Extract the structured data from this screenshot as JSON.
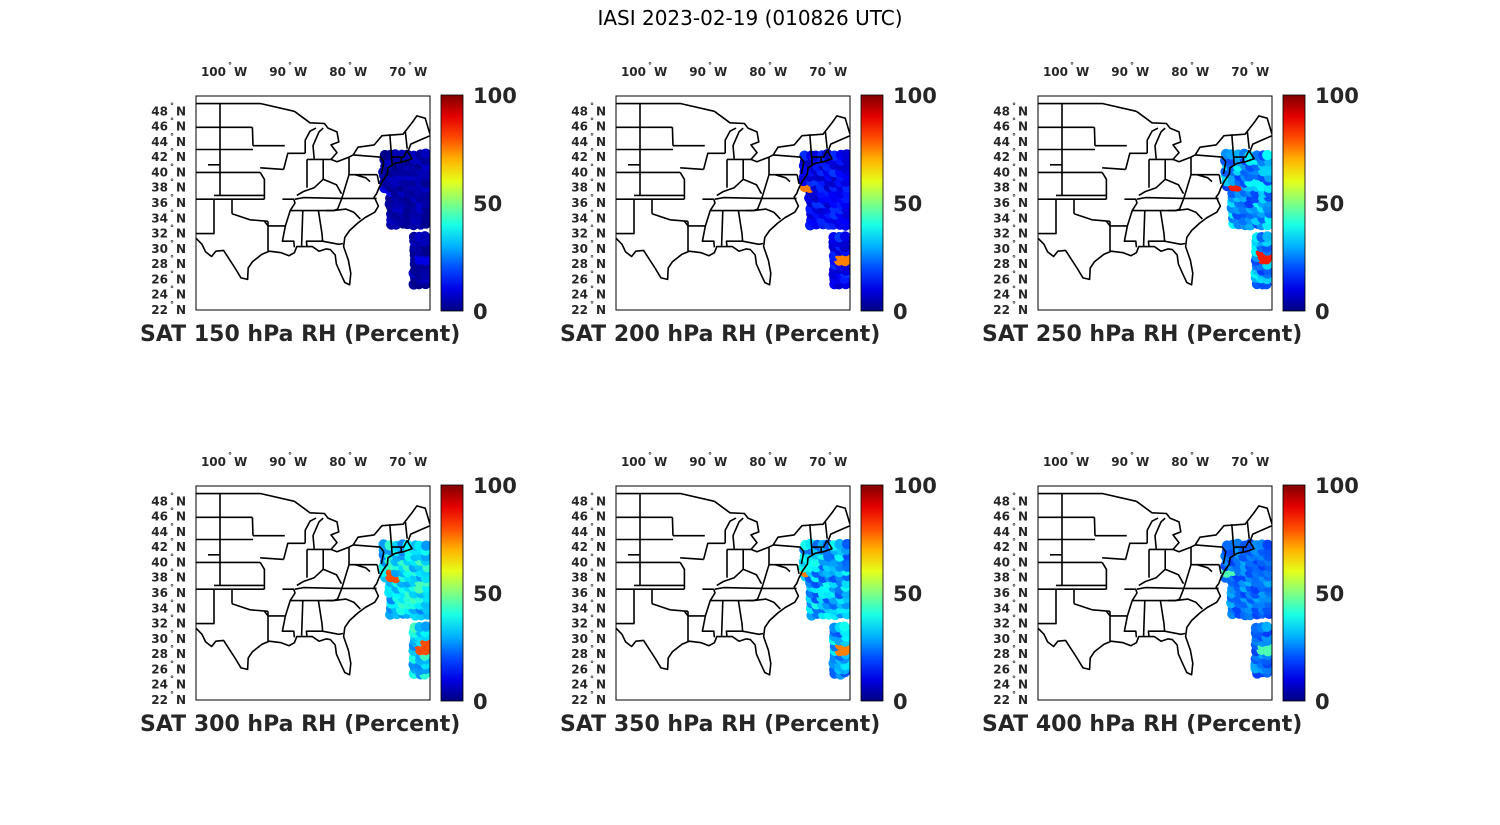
{
  "figure": {
    "title": "IASI 2023-02-19 (010826 UTC)"
  },
  "axes": {
    "lon_ticks": [
      {
        "value": -100,
        "label": "100",
        "hemi": "W"
      },
      {
        "value": -90,
        "label": "90",
        "hemi": "W"
      },
      {
        "value": -80,
        "label": "80",
        "hemi": "W"
      },
      {
        "value": -70,
        "label": "70",
        "hemi": "W"
      }
    ],
    "lat_ticks": [
      {
        "value": 48,
        "label": "48",
        "hemi": "N"
      },
      {
        "value": 46,
        "label": "46",
        "hemi": "N"
      },
      {
        "value": 44,
        "label": "44",
        "hemi": "N"
      },
      {
        "value": 42,
        "label": "42",
        "hemi": "N"
      },
      {
        "value": 40,
        "label": "40",
        "hemi": "N"
      },
      {
        "value": 38,
        "label": "38",
        "hemi": "N"
      },
      {
        "value": 36,
        "label": "36",
        "hemi": "N"
      },
      {
        "value": 34,
        "label": "34",
        "hemi": "N"
      },
      {
        "value": 32,
        "label": "32",
        "hemi": "N"
      },
      {
        "value": 30,
        "label": "30",
        "hemi": "N"
      },
      {
        "value": 28,
        "label": "28",
        "hemi": "N"
      },
      {
        "value": 26,
        "label": "26",
        "hemi": "N"
      },
      {
        "value": 24,
        "label": "24",
        "hemi": "N"
      },
      {
        "value": 22,
        "label": "22",
        "hemi": "N"
      }
    ],
    "lon_range": [
      -106,
      -67
    ],
    "lat_range": [
      22,
      50
    ],
    "colorbar": {
      "ticks": [
        {
          "value": 0,
          "label": "0"
        },
        {
          "value": 50,
          "label": "50"
        },
        {
          "value": 100,
          "label": "100"
        }
      ],
      "range": [
        0,
        100
      ],
      "colormap": "jet"
    }
  },
  "map": {
    "land_fill": "#ffffff",
    "border_color": "#000000"
  },
  "panels": [
    {
      "title": "SAT 150 hPa RH (Percent)",
      "base_rh": 4,
      "var_rh": 3,
      "hot_rh": 10
    },
    {
      "title": "SAT 200 hPa RH (Percent)",
      "base_rh": 12,
      "var_rh": 6,
      "hot_rh": 75
    },
    {
      "title": "SAT 250 hPa RH (Percent)",
      "base_rh": 28,
      "var_rh": 10,
      "hot_rh": 85
    },
    {
      "title": "SAT 300 hPa RH (Percent)",
      "base_rh": 35,
      "var_rh": 10,
      "hot_rh": 80
    },
    {
      "title": "SAT 350 hPa RH (Percent)",
      "base_rh": 30,
      "var_rh": 10,
      "hot_rh": 75
    },
    {
      "title": "SAT 400 hPa RH (Percent)",
      "base_rh": 24,
      "var_rh": 6,
      "hot_rh": 45
    }
  ]
}
